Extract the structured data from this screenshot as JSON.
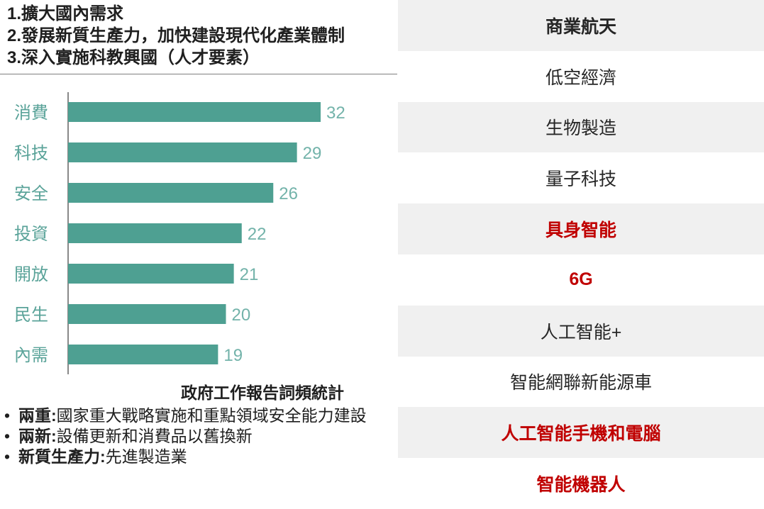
{
  "priorities": [
    "1.擴大國內需求",
    "2.發展新質生產力，加快建設現代化產業體制",
    "3.深入實施科教興國（人才要素）"
  ],
  "chart_data": {
    "type": "bar",
    "orientation": "horizontal",
    "title": "政府工作報告詞頻統計",
    "categories": [
      "消費",
      "科技",
      "安全",
      "投資",
      "開放",
      "民生",
      "內需"
    ],
    "values": [
      32,
      29,
      26,
      22,
      21,
      20,
      19
    ],
    "xlim": [
      0,
      34
    ],
    "grid": false,
    "bar_color": "#4ea092",
    "label_color": "#5aa399"
  },
  "bullets": [
    {
      "dot": "•",
      "term": "兩重:",
      "text": "國家重大戰略實施和重點領域安全能力建設"
    },
    {
      "dot": "•",
      "term": "兩新:",
      "text": "設備更新和消費品以舊換新"
    },
    {
      "dot": "•",
      "term": "新質生產力:",
      "text": "先進製造業"
    }
  ],
  "industries": [
    {
      "label": "商業航天",
      "highlight": false,
      "bold": true
    },
    {
      "label": "低空經濟",
      "highlight": false
    },
    {
      "label": "生物製造",
      "highlight": false
    },
    {
      "label": "量子科技",
      "highlight": false
    },
    {
      "label": "具身智能",
      "highlight": true
    },
    {
      "label": "6G",
      "highlight": true
    },
    {
      "label": "人工智能+",
      "highlight": false
    },
    {
      "label": "智能網聯新能源車",
      "highlight": false
    },
    {
      "label": "人工智能手機和電腦",
      "highlight": true
    },
    {
      "label": "智能機器人",
      "highlight": true
    }
  ],
  "colors": {
    "highlight": "#c00000",
    "shade": "#f0f0f0",
    "bar": "#4ea092"
  }
}
